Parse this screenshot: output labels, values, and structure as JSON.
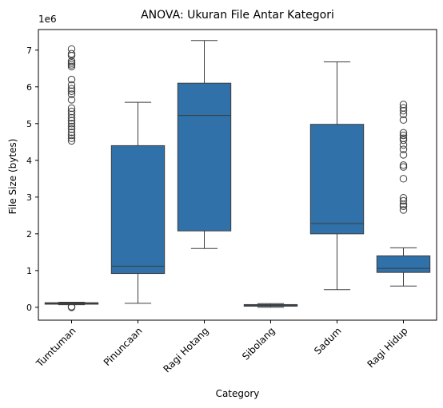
{
  "chart_data": {
    "type": "box",
    "title": "ANOVA: Ukuran File Antar Kategori",
    "xlabel": "Category",
    "ylabel": "File Size (bytes)",
    "y_offset_label": "1e6",
    "y_scale": 1000000,
    "ylim": [
      -350000,
      7560000
    ],
    "y_ticks": [
      0,
      1000000,
      2000000,
      3000000,
      4000000,
      5000000,
      6000000,
      7000000
    ],
    "y_tick_labels": [
      "0",
      "1",
      "2",
      "3",
      "4",
      "5",
      "6",
      "7"
    ],
    "box_color": "#2f71a8",
    "categories": [
      "Tumtuman",
      "Pinuncaan",
      "Ragi Hotang",
      "Sibolang",
      "Sadum",
      "Ragi Hidup"
    ],
    "boxes": [
      {
        "category": "Tumtuman",
        "whisker_low": 70000,
        "q1": 85000,
        "median": 105000,
        "q3": 125000,
        "whisker_high": 140000,
        "outliers": [
          0,
          20000,
          4530000,
          4600000,
          4680000,
          4760000,
          4850000,
          4920000,
          5000000,
          5080000,
          5160000,
          5250000,
          5330000,
          5420000,
          5650000,
          5800000,
          5880000,
          5950000,
          6050000,
          6200000,
          6550000,
          6600000,
          6650000,
          6700000,
          6850000,
          6900000,
          7030000
        ]
      },
      {
        "category": "Pinuncaan",
        "whisker_low": 110000,
        "q1": 920000,
        "median": 1120000,
        "q3": 4400000,
        "whisker_high": 5580000,
        "outliers": []
      },
      {
        "category": "Ragi Hotang",
        "whisker_low": 1600000,
        "q1": 2080000,
        "median": 5220000,
        "q3": 6100000,
        "whisker_high": 7260000,
        "outliers": []
      },
      {
        "category": "Sibolang",
        "whisker_low": 0,
        "q1": 30000,
        "median": 50000,
        "q3": 75000,
        "whisker_high": 100000,
        "outliers": []
      },
      {
        "category": "Sadum",
        "whisker_low": 480000,
        "q1": 2000000,
        "median": 2280000,
        "q3": 4980000,
        "whisker_high": 6680000,
        "outliers": []
      },
      {
        "category": "Ragi Hidup",
        "whisker_low": 580000,
        "q1": 950000,
        "median": 1060000,
        "q3": 1400000,
        "whisker_high": 1620000,
        "outliers": [
          2650000,
          2750000,
          2800000,
          2900000,
          2980000,
          3500000,
          3820000,
          3870000,
          4150000,
          4300000,
          4420000,
          4550000,
          4600000,
          4680000,
          4750000,
          5100000,
          5250000,
          5350000,
          5430000,
          5520000
        ]
      }
    ],
    "grid": false,
    "legend": "none"
  }
}
